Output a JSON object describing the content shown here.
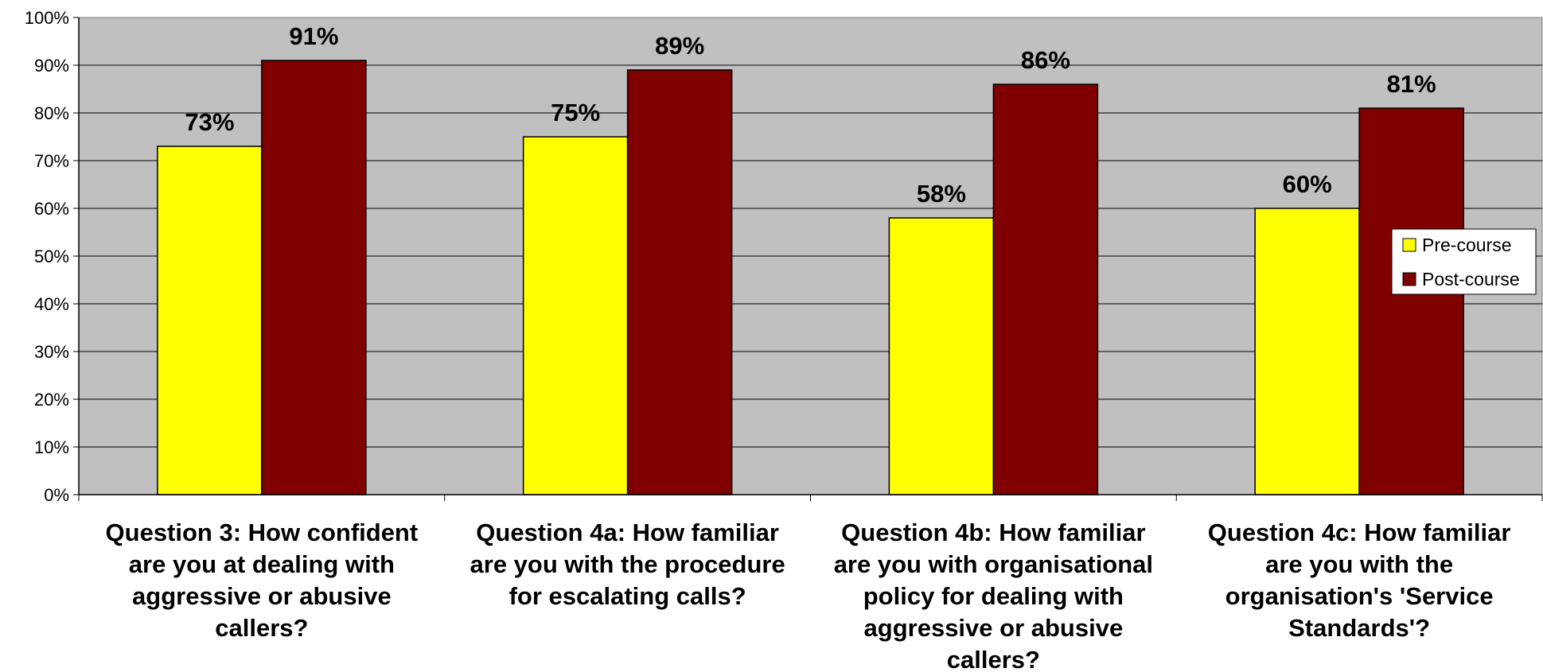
{
  "chart_data": {
    "type": "bar",
    "categories": [
      [
        "Question 3: How confident",
        "are you at dealing with",
        "aggressive or abusive",
        "callers?"
      ],
      [
        "Question 4a: How familiar",
        "are you with the procedure",
        "for escalating calls?"
      ],
      [
        "Question 4b: How familiar",
        "are you with organisational",
        "policy for dealing with",
        "aggressive or abusive",
        "callers?"
      ],
      [
        "Question 4c: How familiar",
        "are you with the",
        "organisation's 'Service",
        "Standards'?"
      ]
    ],
    "series": [
      {
        "name": "Pre-course",
        "color": "#FFFF00",
        "values": [
          73,
          75,
          58,
          60
        ],
        "labels": [
          "73%",
          "75%",
          "58%",
          "60%"
        ]
      },
      {
        "name": "Post-course",
        "color": "#800000",
        "values": [
          91,
          89,
          86,
          81
        ],
        "labels": [
          "91%",
          "89%",
          "86%",
          "81%"
        ]
      }
    ],
    "ylim": [
      0,
      100
    ],
    "yticks": [
      "0%",
      "10%",
      "20%",
      "30%",
      "40%",
      "50%",
      "60%",
      "70%",
      "80%",
      "90%",
      "100%"
    ],
    "plot_background": "#C0C0C0",
    "grid": true,
    "legend_position": "right"
  }
}
